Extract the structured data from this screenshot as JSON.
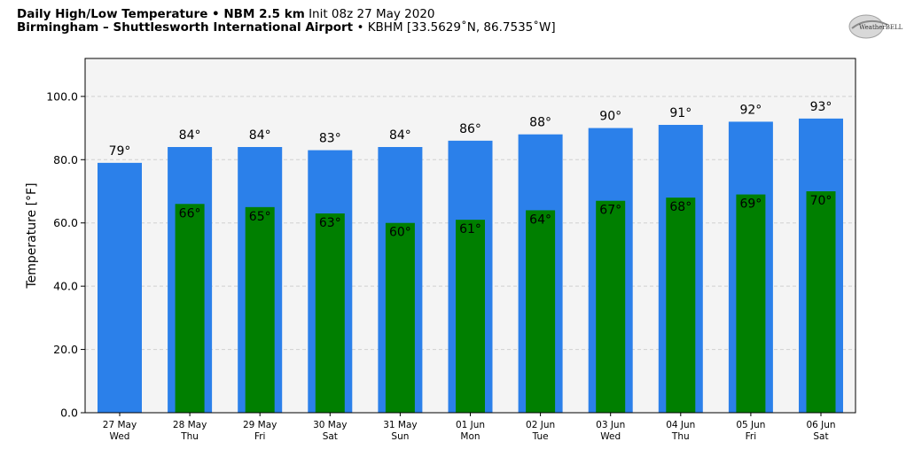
{
  "header": {
    "title_bold": "Daily High/Low Temperature • NBM 2.5 km",
    "title_init": "Init 08z 27 May 2020",
    "location_bold": "Birmingham – Shuttlesworth International Airport",
    "location_rest": "• KBHM [33.5629˚N, 86.7535˚W]"
  },
  "logo": {
    "text": "WeatherBELL"
  },
  "chart_data": {
    "type": "bar",
    "title": "Daily High/Low Temperature • NBM 2.5 km",
    "ylabel": "Temperature [°F]",
    "xlabel": "",
    "ylim": [
      0,
      112
    ],
    "yticks": [
      0,
      20,
      40,
      60,
      80,
      100
    ],
    "ytick_labels": [
      "0.0",
      "20.0",
      "40.0",
      "60.0",
      "80.0",
      "100.0"
    ],
    "grid": true,
    "categories": [
      {
        "date": "27 May",
        "day": "Wed"
      },
      {
        "date": "28 May",
        "day": "Thu"
      },
      {
        "date": "29 May",
        "day": "Fri"
      },
      {
        "date": "30 May",
        "day": "Sat"
      },
      {
        "date": "31 May",
        "day": "Sun"
      },
      {
        "date": "01 Jun",
        "day": "Mon"
      },
      {
        "date": "02 Jun",
        "day": "Tue"
      },
      {
        "date": "03 Jun",
        "day": "Wed"
      },
      {
        "date": "04 Jun",
        "day": "Thu"
      },
      {
        "date": "05 Jun",
        "day": "Fri"
      },
      {
        "date": "06 Jun",
        "day": "Sat"
      }
    ],
    "series": [
      {
        "key": "high",
        "color": "#2b80ea",
        "values": [
          79,
          84,
          84,
          83,
          84,
          86,
          88,
          90,
          91,
          92,
          93
        ],
        "labels": [
          "79°",
          "84°",
          "84°",
          "83°",
          "84°",
          "86°",
          "88°",
          "90°",
          "91°",
          "92°",
          "93°"
        ]
      },
      {
        "key": "low",
        "color": "#007f00",
        "values": [
          null,
          66,
          65,
          63,
          60,
          61,
          64,
          67,
          68,
          69,
          70
        ],
        "labels": [
          "",
          "66°",
          "65°",
          "63°",
          "60°",
          "61°",
          "64°",
          "67°",
          "68°",
          "69°",
          "70°"
        ]
      }
    ],
    "plot_background": "#f4f4f4",
    "grid_color": "#d0d0d0"
  }
}
